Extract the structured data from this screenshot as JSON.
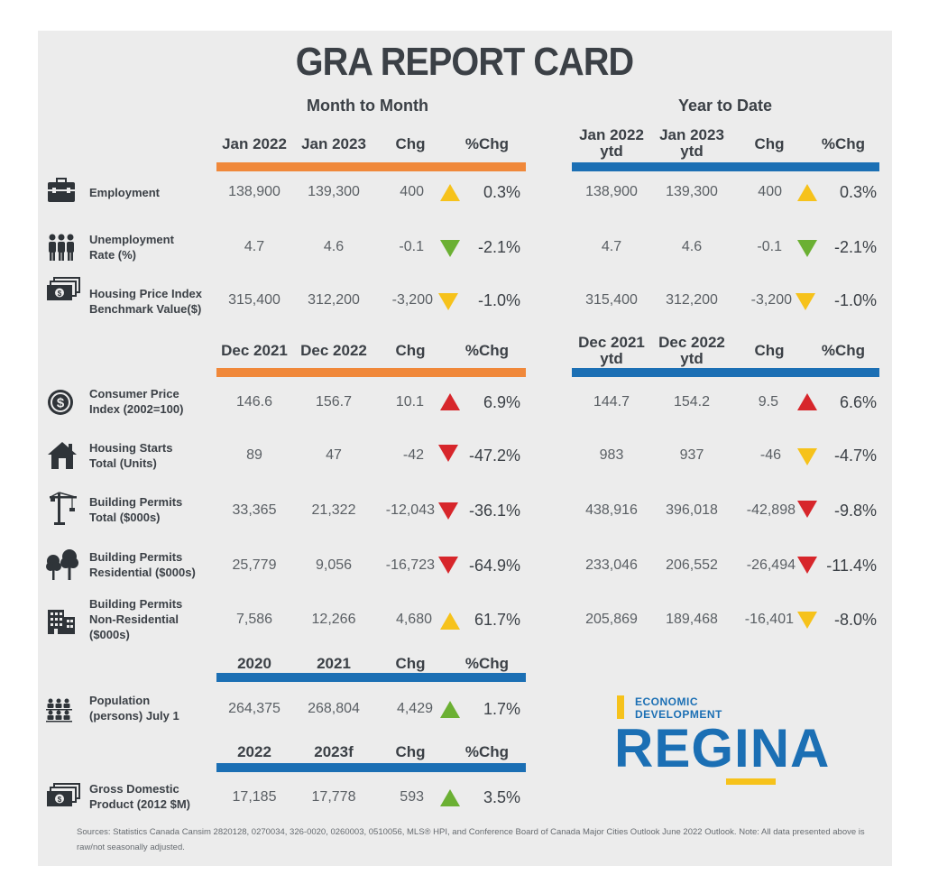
{
  "title": "GRA REPORT CARD",
  "section_mtm": "Month to Month",
  "section_ytd": "Year to Date",
  "headers": {
    "g1": {
      "m": [
        "Jan 2022",
        "Jan 2023",
        "Chg",
        "%Chg"
      ],
      "y1": [
        "Jan 2022",
        "Jan 2023"
      ],
      "y2": "ytd",
      "y": [
        "Chg",
        "%Chg"
      ]
    },
    "g2": {
      "m": [
        "Dec 2021",
        "Dec 2022",
        "Chg",
        "%Chg"
      ],
      "y1": [
        "Dec 2021",
        "Dec 2022"
      ],
      "y2": "ytd",
      "y": [
        "Chg",
        "%Chg"
      ]
    },
    "g3": [
      "2020",
      "2021",
      "Chg",
      "%Chg"
    ],
    "g4": [
      "2022",
      "2023f",
      "Chg",
      "%Chg"
    ]
  },
  "rows": {
    "employment": {
      "label": "Employment",
      "m": [
        "138,900",
        "139,300",
        "400",
        "0.3%"
      ],
      "y": [
        "138,900",
        "139,300",
        "400",
        "0.3%"
      ],
      "m_dir": "up-yellow",
      "y_dir": "up-yellow"
    },
    "unemployment": {
      "label1": "Unemployment",
      "label2": "Rate (%)",
      "m": [
        "4.7",
        "4.6",
        "-0.1",
        "-2.1%"
      ],
      "y": [
        "4.7",
        "4.6",
        "-0.1",
        "-2.1%"
      ],
      "m_dir": "down-green",
      "y_dir": "down-green"
    },
    "hpi": {
      "label1": "Housing Price Index",
      "label2": "Benchmark Value($)",
      "m": [
        "315,400",
        "312,200",
        "-3,200",
        "-1.0%"
      ],
      "y": [
        "315,400",
        "312,200",
        "-3,200",
        "-1.0%"
      ],
      "m_dir": "down-yellow",
      "y_dir": "down-yellow"
    },
    "cpi": {
      "label1": "Consumer Price",
      "label2": "Index (2002=100)",
      "m": [
        "146.6",
        "156.7",
        "10.1",
        "6.9%"
      ],
      "y": [
        "144.7",
        "154.2",
        "9.5",
        "6.6%"
      ],
      "m_dir": "up-red",
      "y_dir": "up-red"
    },
    "starts": {
      "label1": "Housing Starts",
      "label2": "Total (Units)",
      "m": [
        "89",
        "47",
        "-42",
        "-47.2%"
      ],
      "y": [
        "983",
        "937",
        "-46",
        "-4.7%"
      ],
      "m_dir": "down-red",
      "y_dir": "down-yellow"
    },
    "permits_total": {
      "label1": "Building Permits",
      "label2": "Total ($000s)",
      "m": [
        "33,365",
        "21,322",
        "-12,043",
        "-36.1%"
      ],
      "y": [
        "438,916",
        "396,018",
        "-42,898",
        "-9.8%"
      ],
      "m_dir": "down-red",
      "y_dir": "down-red"
    },
    "permits_res": {
      "label1": "Building Permits",
      "label2": "Residential ($000s)",
      "m": [
        "25,779",
        "9,056",
        "-16,723",
        "-64.9%"
      ],
      "y": [
        "233,046",
        "206,552",
        "-26,494",
        "-11.4%"
      ],
      "m_dir": "down-red",
      "y_dir": "down-red"
    },
    "permits_nonres": {
      "label1": "Building Permits",
      "label2": "Non-Residential",
      "label3": "($000s)",
      "m": [
        "7,586",
        "12,266",
        "4,680",
        "61.7%"
      ],
      "y": [
        "205,869",
        "189,468",
        "-16,401",
        "-8.0%"
      ],
      "m_dir": "up-yellow",
      "y_dir": "down-yellow"
    },
    "population": {
      "label1": "Population",
      "label2": "(persons) July 1",
      "m": [
        "264,375",
        "268,804",
        "4,429",
        "1.7%"
      ],
      "m_dir": "up-green"
    },
    "gdp": {
      "label1": "Gross Domestic",
      "label2": "Product (2012 $M)",
      "m": [
        "17,185",
        "17,778",
        "593",
        "3.5%"
      ],
      "m_dir": "up-green"
    }
  },
  "logo": {
    "line1": "ECONOMIC",
    "line2": "DEVELOPMENT",
    "word": "REGINA"
  },
  "sources": "Sources: Statistics Canada Cansim 2820128, 0270034, 326-0020, 0260003, 0510056, MLS® HPI, and Conference Board of Canada Major Cities Outlook June 2022 Outlook. Note: All data presented above is raw/not seasonally adjusted.",
  "colors": {
    "orange": "#f0883a",
    "blue": "#1b6fb4",
    "up_yellow": "#f6c21b",
    "green": "#6bb033",
    "red": "#d7262b"
  },
  "icons": [
    "briefcase-icon",
    "people-icon",
    "money-icon",
    "dollar-coin-icon",
    "house-icon",
    "crane-icon",
    "trees-icon",
    "building-icon",
    "population-icon",
    "money-icon"
  ]
}
